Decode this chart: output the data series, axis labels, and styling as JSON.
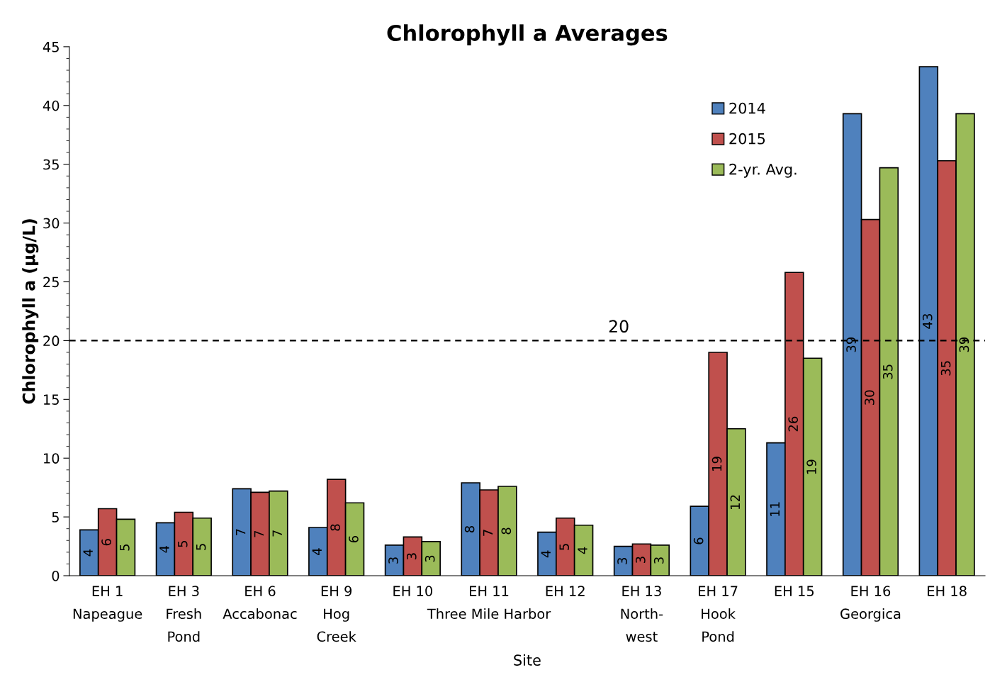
{
  "chart_data": {
    "type": "bar",
    "title": "Chlorophyll a Averages",
    "xlabel": "Site",
    "ylabel": "Chlorophyll a (µg/L)",
    "categories": [
      "EH 1\nNapeague",
      "EH 3\nFresh\nPond",
      "EH 6\nAccabonac",
      "EH 9\nHog\nCreek",
      "EH 10",
      "EH 11\nThree Mile Harbor",
      "EH 12",
      "EH 13\nNorth-\nwest",
      "EH 17\nHook\nPond",
      "EH 15",
      "EH 16\nGeorgica",
      "EH 18"
    ],
    "series": [
      {
        "name": "2014",
        "color": "#4f81bd",
        "values": [
          3.9,
          4.5,
          7.4,
          4.1,
          2.6,
          7.9,
          3.7,
          2.5,
          5.9,
          11.3,
          39.3,
          43.3
        ],
        "value_labels": [
          "4",
          "4",
          "7",
          "4",
          "3",
          "8",
          "4",
          "3",
          "6",
          "11",
          "39",
          "43"
        ]
      },
      {
        "name": "2015",
        "color": "#c0504d",
        "values": [
          5.7,
          5.4,
          7.1,
          8.2,
          3.3,
          7.3,
          4.9,
          2.7,
          19.0,
          25.8,
          30.3,
          35.3
        ],
        "value_labels": [
          "6",
          "5",
          "7",
          "8",
          "3",
          "7",
          "5",
          "3",
          "19",
          "26",
          "30",
          "35"
        ]
      },
      {
        "name": "2-yr. Avg.",
        "color": "#9bbb59",
        "values": [
          4.8,
          4.9,
          7.2,
          6.2,
          2.9,
          7.6,
          4.3,
          2.6,
          12.5,
          18.5,
          34.7,
          39.3
        ],
        "value_labels": [
          "5",
          "5",
          "7",
          "6",
          "3",
          "8",
          "4",
          "3",
          "12",
          "19",
          "35",
          "39"
        ]
      }
    ],
    "ylim": [
      0,
      45
    ],
    "yticks": [
      0,
      5,
      10,
      15,
      20,
      25,
      30,
      35,
      40,
      45
    ],
    "ref_lines": [
      {
        "axis": "y",
        "value": 20,
        "label": "20",
        "color": "#000000",
        "line_style": "dashed"
      }
    ],
    "grid": false,
    "legend": "top right"
  }
}
